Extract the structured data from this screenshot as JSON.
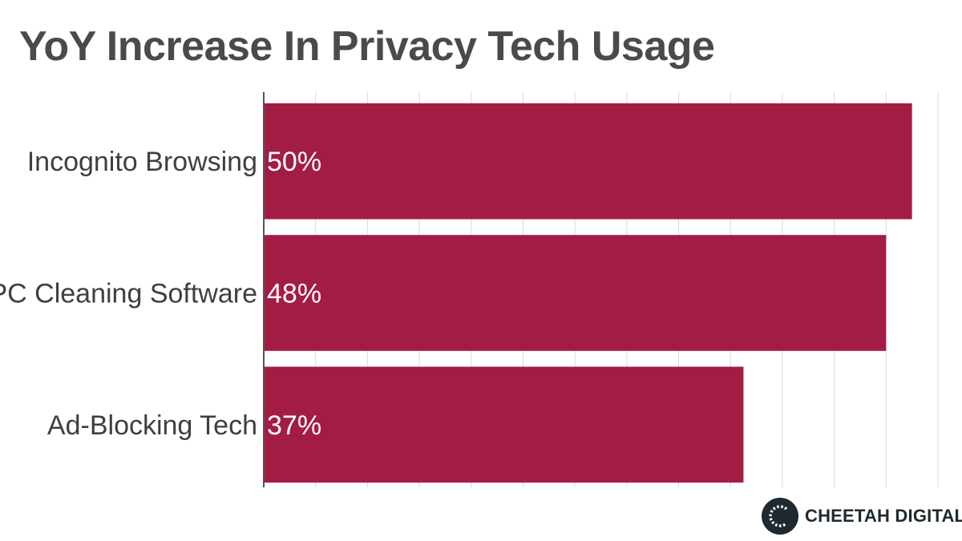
{
  "chart_data": {
    "type": "bar",
    "orientation": "horizontal",
    "title": "YoY Increase In Privacy Tech Usage",
    "categories": [
      "Incognito Browsing",
      "PC Cleaning Software",
      "Ad-Blocking Tech"
    ],
    "values": [
      50,
      48,
      37
    ],
    "value_labels": [
      "50%",
      "48%",
      "37%"
    ],
    "xlim": [
      0,
      52
    ],
    "grid": true,
    "bar_color": "#a31c44",
    "xlabel": "",
    "ylabel": ""
  },
  "brand": {
    "name": "CHEETAH DIGITAL",
    "logo_letter": "C"
  },
  "colors": {
    "title": "#4a4a4a",
    "grid": "#d9d9d9",
    "axis": "#555555",
    "logo": "#1e2a2f"
  }
}
